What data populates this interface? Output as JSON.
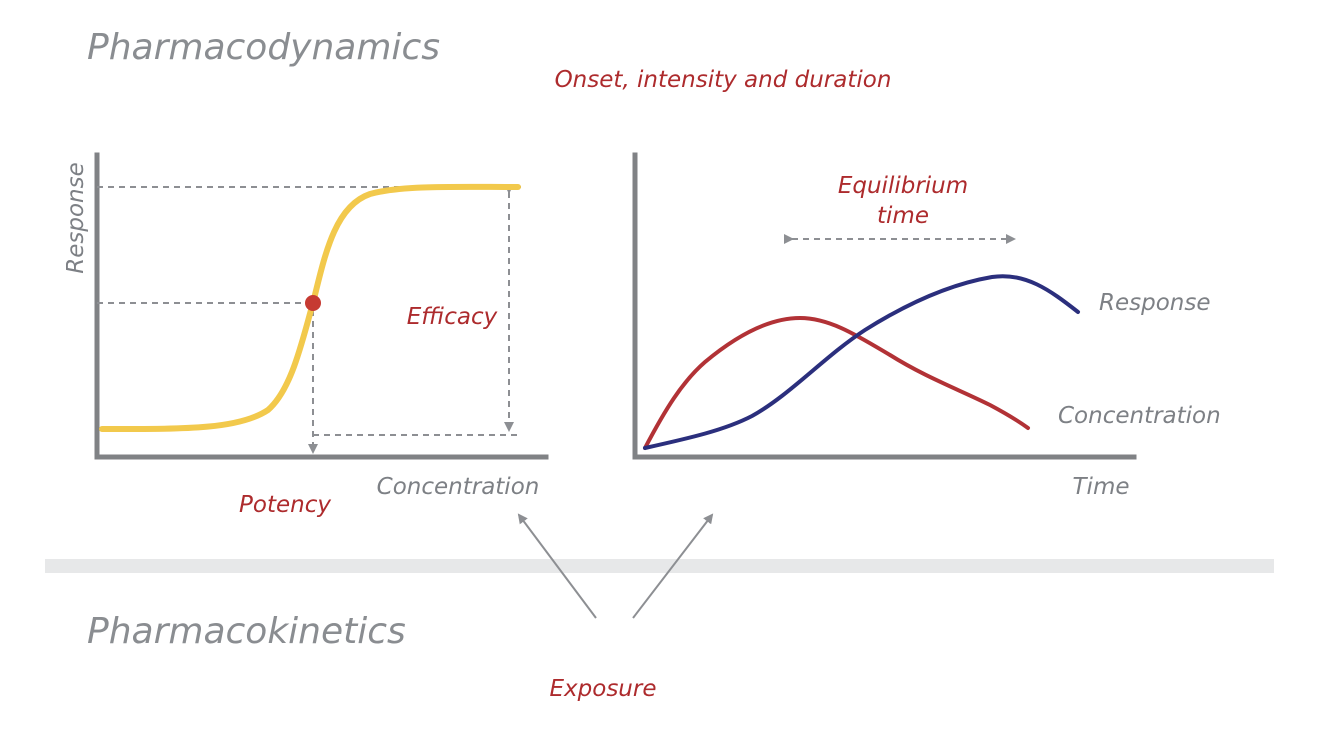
{
  "pharmacodynamics": {
    "title": "Pharmacodynamics",
    "subtitle": "Onset, intensity and duration"
  },
  "pharmacokinetics": {
    "title": "Pharmacokinetics",
    "exposure_label": "Exposure"
  },
  "left_panel": {
    "y_axis_label": "Response",
    "x_axis_label": "Concentration",
    "efficacy_label": "Efficacy",
    "potency_label": "Potency"
  },
  "right_panel": {
    "equilibrium_label_line1": "Equilibrium",
    "equilibrium_label_line2": "time",
    "x_axis_label": "Time",
    "response_label": "Response",
    "concentration_label": "Concentration"
  },
  "colors": {
    "heading_gray": "#8a8d91",
    "accent_red": "#ad2b2d",
    "sigmoid_yellow": "#f2c94c",
    "response_blue": "#2b2f7d",
    "concentration_red": "#b23236",
    "axis_gray": "#808285",
    "divider_gray": "#e7e8e9"
  }
}
